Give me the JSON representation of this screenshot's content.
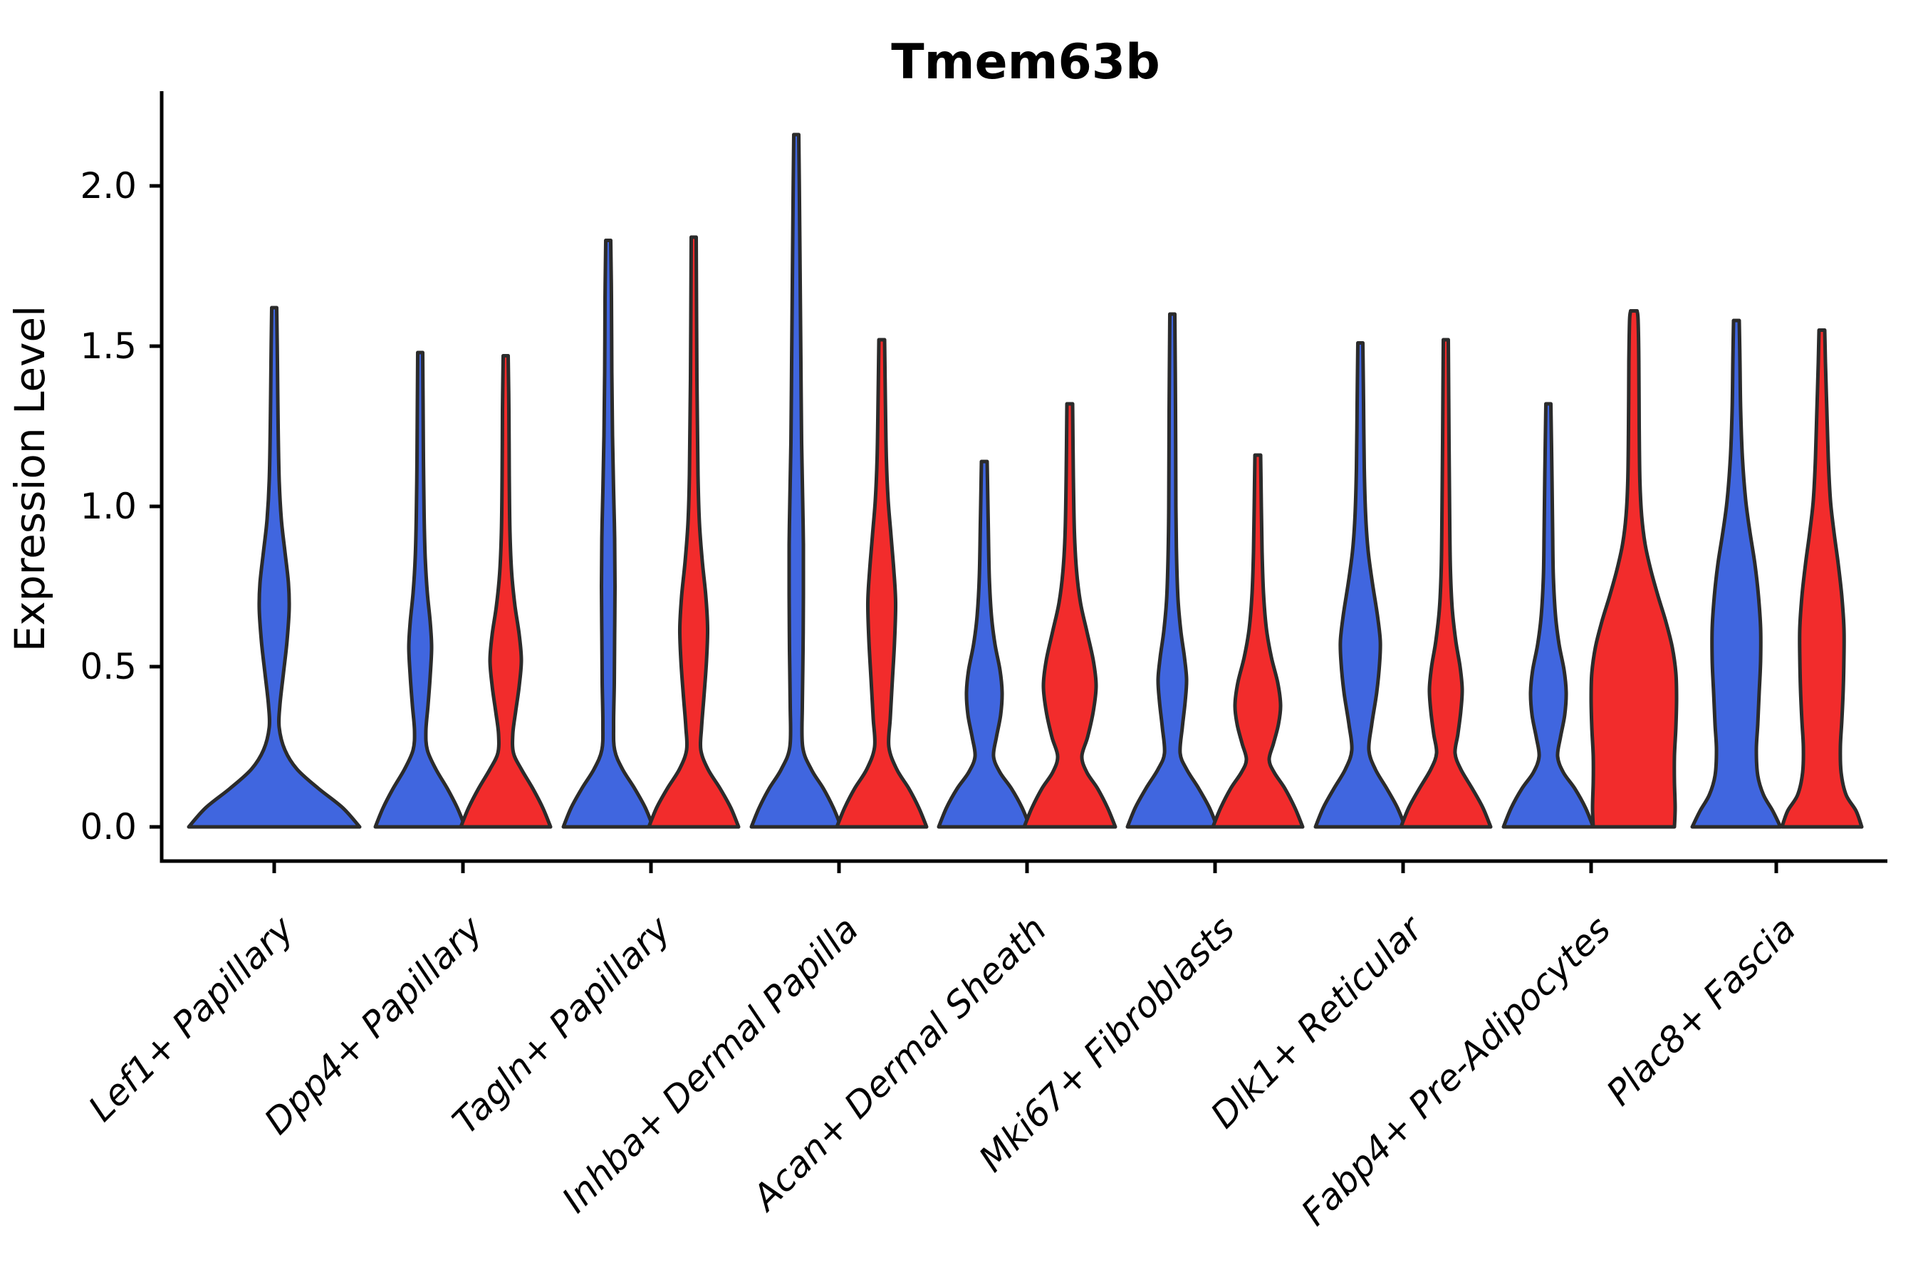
{
  "title": "Tmem63b",
  "y_axis": {
    "label": "Expression Level",
    "tick_labels": [
      "0.0",
      "0.5",
      "1.0",
      "1.5",
      "2.0"
    ],
    "tick_values": [
      0.0,
      0.5,
      1.0,
      1.5,
      2.0
    ]
  },
  "x_axis": {
    "categories": [
      "Lef1+ Papillary",
      "Dpp4+ Papillary",
      "Tagln+ Papillary",
      "Inhba+ Dermal Papilla",
      "Acan+ Dermal Sheath",
      "Mki67+ Fibroblasts",
      "Dlk1+ Reticular",
      "Fabp4+ Pre-Adipocytes",
      "Plac8+ Fascia"
    ],
    "category_centers": [
      385,
      650,
      914,
      1178,
      1442,
      1706,
      1970,
      2234,
      2494
    ]
  },
  "colors": {
    "blue_series": "#4066DF",
    "red_series": "#F22C2C",
    "violin_outline": "#2B2B2B",
    "axis": "#000000"
  },
  "chart_data": {
    "type": "violin",
    "title": "Tmem63b",
    "ylabel": "Expression Level",
    "ylim_display": [
      -0.11,
      2.29
    ],
    "yticks": [
      0.0,
      0.5,
      1.0,
      1.5,
      2.0
    ],
    "grid": false,
    "legend": "none",
    "categories": [
      "Lef1+ Papillary",
      "Dpp4+ Papillary",
      "Tagln+ Papillary",
      "Inhba+ Dermal Papilla",
      "Acan+ Dermal Sheath",
      "Mki67+ Fibroblasts",
      "Dlk1+ Reticular",
      "Fabp4+ Pre-Adipocytes",
      "Plac8+ Fascia"
    ],
    "series": [
      {
        "name": "series-blue",
        "color": "#4066DF",
        "max_expression_by_category": [
          1.62,
          1.48,
          1.83,
          2.16,
          1.14,
          1.6,
          1.51,
          1.32,
          1.58
        ]
      },
      {
        "name": "series-red",
        "color": "#F22C2C",
        "max_expression_by_category": [
          null,
          1.47,
          1.84,
          1.52,
          1.32,
          1.16,
          1.52,
          1.61,
          1.55
        ]
      }
    ],
    "violins": [
      {
        "category": "Lef1+ Papillary",
        "series": "blue",
        "cx": 385,
        "max": 1.62,
        "profile": [
          [
            0,
            120
          ],
          [
            0.06,
            96
          ],
          [
            0.12,
            62
          ],
          [
            0.18,
            32
          ],
          [
            0.24,
            15
          ],
          [
            0.31,
            7
          ],
          [
            0.38,
            8
          ],
          [
            0.48,
            13
          ],
          [
            0.58,
            18
          ],
          [
            0.68,
            21
          ],
          [
            0.76,
            20
          ],
          [
            0.86,
            15
          ],
          [
            0.96,
            10
          ],
          [
            1.08,
            7
          ],
          [
            1.25,
            5.5
          ],
          [
            1.45,
            4.5
          ],
          [
            1.62,
            3.5
          ]
        ]
      },
      {
        "category": "Dpp4+ Papillary",
        "series": "blue",
        "cx": 590,
        "max": 1.48,
        "profile": [
          [
            0,
            63
          ],
          [
            0.06,
            52
          ],
          [
            0.12,
            38
          ],
          [
            0.18,
            22
          ],
          [
            0.24,
            10
          ],
          [
            0.3,
            8
          ],
          [
            0.38,
            11
          ],
          [
            0.47,
            14
          ],
          [
            0.56,
            16
          ],
          [
            0.64,
            14
          ],
          [
            0.73,
            10
          ],
          [
            0.84,
            7
          ],
          [
            0.97,
            5.5
          ],
          [
            1.15,
            4.5
          ],
          [
            1.32,
            4
          ],
          [
            1.48,
            3.5
          ]
        ]
      },
      {
        "category": "Dpp4+ Papillary",
        "series": "red",
        "cx": 710,
        "max": 1.47,
        "profile": [
          [
            0,
            63
          ],
          [
            0.06,
            52
          ],
          [
            0.12,
            38
          ],
          [
            0.18,
            22
          ],
          [
            0.23,
            11
          ],
          [
            0.29,
            10
          ],
          [
            0.36,
            14
          ],
          [
            0.44,
            19
          ],
          [
            0.52,
            22
          ],
          [
            0.6,
            19
          ],
          [
            0.69,
            13
          ],
          [
            0.79,
            8.5
          ],
          [
            0.92,
            6
          ],
          [
            1.1,
            5
          ],
          [
            1.3,
            4.5
          ],
          [
            1.47,
            3.5
          ]
        ]
      },
      {
        "category": "Tagln+ Papillary",
        "series": "blue",
        "cx": 854,
        "max": 1.83,
        "profile": [
          [
            0,
            63
          ],
          [
            0.06,
            52
          ],
          [
            0.12,
            37
          ],
          [
            0.18,
            20
          ],
          [
            0.24,
            9
          ],
          [
            0.32,
            7.5
          ],
          [
            0.45,
            8.5
          ],
          [
            0.6,
            9
          ],
          [
            0.75,
            9.5
          ],
          [
            0.9,
            9
          ],
          [
            1.05,
            7.5
          ],
          [
            1.22,
            6
          ],
          [
            1.42,
            5
          ],
          [
            1.65,
            4.5
          ],
          [
            1.83,
            3.5
          ]
        ]
      },
      {
        "category": "Tagln+ Papillary",
        "series": "red",
        "cx": 974,
        "max": 1.84,
        "profile": [
          [
            0,
            63
          ],
          [
            0.06,
            52
          ],
          [
            0.12,
            37
          ],
          [
            0.18,
            20
          ],
          [
            0.24,
            10
          ],
          [
            0.31,
            11
          ],
          [
            0.41,
            14.5
          ],
          [
            0.52,
            18
          ],
          [
            0.62,
            19.5
          ],
          [
            0.72,
            17
          ],
          [
            0.83,
            12
          ],
          [
            0.95,
            8
          ],
          [
            1.1,
            6
          ],
          [
            1.4,
            4.5
          ],
          [
            1.84,
            3.5
          ]
        ]
      },
      {
        "category": "Inhba+ Dermal Papilla",
        "series": "blue",
        "cx": 1118,
        "max": 2.16,
        "profile": [
          [
            0,
            63
          ],
          [
            0.06,
            52
          ],
          [
            0.12,
            38
          ],
          [
            0.18,
            21
          ],
          [
            0.25,
            9
          ],
          [
            0.38,
            8.5
          ],
          [
            0.55,
            9.5
          ],
          [
            0.72,
            10
          ],
          [
            0.88,
            10
          ],
          [
            1.02,
            9
          ],
          [
            1.2,
            7.5
          ],
          [
            1.45,
            6.5
          ],
          [
            1.7,
            5.5
          ],
          [
            1.95,
            4.5
          ],
          [
            2.16,
            3.5
          ]
        ]
      },
      {
        "category": "Inhba+ Dermal Papilla",
        "series": "red",
        "cx": 1238,
        "max": 1.52,
        "profile": [
          [
            0,
            63
          ],
          [
            0.06,
            52
          ],
          [
            0.12,
            38
          ],
          [
            0.18,
            21
          ],
          [
            0.25,
            10
          ],
          [
            0.34,
            12
          ],
          [
            0.46,
            15
          ],
          [
            0.58,
            18
          ],
          [
            0.7,
            19.5
          ],
          [
            0.8,
            17
          ],
          [
            0.91,
            13
          ],
          [
            1.02,
            9
          ],
          [
            1.15,
            6.5
          ],
          [
            1.35,
            5
          ],
          [
            1.52,
            4
          ]
        ]
      },
      {
        "category": "Acan+ Dermal Sheath",
        "series": "blue",
        "cx": 1382,
        "max": 1.14,
        "profile": [
          [
            0,
            64
          ],
          [
            0.06,
            53
          ],
          [
            0.12,
            38
          ],
          [
            0.17,
            22
          ],
          [
            0.22,
            13
          ],
          [
            0.28,
            17
          ],
          [
            0.35,
            23
          ],
          [
            0.42,
            25
          ],
          [
            0.49,
            22
          ],
          [
            0.57,
            15
          ],
          [
            0.66,
            10
          ],
          [
            0.78,
            7
          ],
          [
            0.95,
            5.5
          ],
          [
            1.14,
            4
          ]
        ]
      },
      {
        "category": "Acan+ Dermal Sheath",
        "series": "red",
        "cx": 1502,
        "max": 1.32,
        "profile": [
          [
            0,
            64
          ],
          [
            0.06,
            53
          ],
          [
            0.12,
            39
          ],
          [
            0.17,
            24
          ],
          [
            0.22,
            17
          ],
          [
            0.28,
            25
          ],
          [
            0.36,
            33
          ],
          [
            0.44,
            37
          ],
          [
            0.52,
            33
          ],
          [
            0.61,
            24
          ],
          [
            0.7,
            15
          ],
          [
            0.8,
            9.5
          ],
          [
            0.92,
            6.5
          ],
          [
            1.1,
            5
          ],
          [
            1.32,
            4
          ]
        ]
      },
      {
        "category": "Mki67+ Fibroblasts",
        "series": "blue",
        "cx": 1646,
        "max": 1.6,
        "profile": [
          [
            0,
            63
          ],
          [
            0.06,
            52
          ],
          [
            0.12,
            37
          ],
          [
            0.18,
            20
          ],
          [
            0.23,
            11
          ],
          [
            0.31,
            14
          ],
          [
            0.39,
            18
          ],
          [
            0.46,
            20
          ],
          [
            0.53,
            17
          ],
          [
            0.61,
            12
          ],
          [
            0.71,
            8
          ],
          [
            0.84,
            6
          ],
          [
            1.0,
            5
          ],
          [
            1.3,
            4.5
          ],
          [
            1.6,
            3.5
          ]
        ]
      },
      {
        "category": "Mki67+ Fibroblasts",
        "series": "red",
        "cx": 1766,
        "max": 1.16,
        "profile": [
          [
            0,
            63
          ],
          [
            0.06,
            52
          ],
          [
            0.12,
            38
          ],
          [
            0.17,
            23
          ],
          [
            0.21,
            16
          ],
          [
            0.26,
            22
          ],
          [
            0.32,
            29
          ],
          [
            0.38,
            32
          ],
          [
            0.45,
            28
          ],
          [
            0.53,
            19
          ],
          [
            0.62,
            12
          ],
          [
            0.73,
            8
          ],
          [
            0.86,
            6
          ],
          [
            1.0,
            5
          ],
          [
            1.16,
            4
          ]
        ]
      },
      {
        "category": "Dlk1+ Reticular",
        "series": "blue",
        "cx": 1910,
        "max": 1.51,
        "profile": [
          [
            0,
            63
          ],
          [
            0.06,
            52
          ],
          [
            0.12,
            37
          ],
          [
            0.18,
            21
          ],
          [
            0.24,
            12
          ],
          [
            0.32,
            16
          ],
          [
            0.42,
            23
          ],
          [
            0.51,
            27
          ],
          [
            0.58,
            28
          ],
          [
            0.66,
            24
          ],
          [
            0.76,
            17
          ],
          [
            0.86,
            11
          ],
          [
            0.97,
            7.5
          ],
          [
            1.12,
            5.5
          ],
          [
            1.32,
            4.5
          ],
          [
            1.51,
            3.5
          ]
        ]
      },
      {
        "category": "Dlk1+ Reticular",
        "series": "red",
        "cx": 2030,
        "max": 1.52,
        "profile": [
          [
            0,
            63
          ],
          [
            0.06,
            52
          ],
          [
            0.12,
            37
          ],
          [
            0.18,
            21
          ],
          [
            0.23,
            13
          ],
          [
            0.29,
            17
          ],
          [
            0.36,
            21
          ],
          [
            0.43,
            23
          ],
          [
            0.5,
            20
          ],
          [
            0.58,
            14
          ],
          [
            0.68,
            9
          ],
          [
            0.8,
            6.5
          ],
          [
            0.95,
            5.5
          ],
          [
            1.2,
            4.5
          ],
          [
            1.52,
            3.5
          ]
        ]
      },
      {
        "category": "Fabp4+ Pre-Adipocytes",
        "series": "blue",
        "cx": 2174,
        "max": 1.32,
        "profile": [
          [
            0,
            63
          ],
          [
            0.06,
            52
          ],
          [
            0.12,
            37
          ],
          [
            0.17,
            21
          ],
          [
            0.22,
            13
          ],
          [
            0.28,
            17
          ],
          [
            0.35,
            23
          ],
          [
            0.42,
            25
          ],
          [
            0.49,
            22
          ],
          [
            0.57,
            15
          ],
          [
            0.66,
            10
          ],
          [
            0.78,
            7
          ],
          [
            0.92,
            6
          ],
          [
            1.1,
            5
          ],
          [
            1.32,
            3.5
          ]
        ]
      },
      {
        "category": "Fabp4+ Pre-Adipocytes",
        "series": "red",
        "cx": 2294,
        "max": 1.61,
        "profile": [
          [
            0,
            57
          ],
          [
            0.06,
            58
          ],
          [
            0.14,
            57
          ],
          [
            0.22,
            57
          ],
          [
            0.31,
            59
          ],
          [
            0.4,
            60
          ],
          [
            0.48,
            59
          ],
          [
            0.56,
            54
          ],
          [
            0.64,
            45
          ],
          [
            0.72,
            34
          ],
          [
            0.8,
            24
          ],
          [
            0.88,
            16
          ],
          [
            0.97,
            11
          ],
          [
            1.08,
            8.5
          ],
          [
            1.25,
            7.5
          ],
          [
            1.45,
            7
          ],
          [
            1.58,
            6
          ],
          [
            1.61,
            4.5
          ]
        ]
      },
      {
        "category": "Plac8+ Fascia",
        "series": "blue",
        "cx": 2438,
        "max": 1.58,
        "profile": [
          [
            0,
            62
          ],
          [
            0.05,
            51
          ],
          [
            0.1,
            38
          ],
          [
            0.16,
            30
          ],
          [
            0.24,
            28
          ],
          [
            0.32,
            30
          ],
          [
            0.42,
            32
          ],
          [
            0.52,
            34
          ],
          [
            0.62,
            34
          ],
          [
            0.72,
            31
          ],
          [
            0.82,
            26
          ],
          [
            0.92,
            19
          ],
          [
            1.02,
            13
          ],
          [
            1.15,
            8.5
          ],
          [
            1.3,
            6
          ],
          [
            1.45,
            5
          ],
          [
            1.58,
            4
          ]
        ]
      },
      {
        "category": "Plac8+ Fascia",
        "series": "red",
        "cx": 2558,
        "max": 1.55,
        "profile": [
          [
            0,
            56
          ],
          [
            0.05,
            48
          ],
          [
            0.1,
            34
          ],
          [
            0.17,
            27
          ],
          [
            0.25,
            26
          ],
          [
            0.33,
            28
          ],
          [
            0.43,
            30
          ],
          [
            0.53,
            31
          ],
          [
            0.62,
            31
          ],
          [
            0.72,
            28
          ],
          [
            0.82,
            23
          ],
          [
            0.92,
            17
          ],
          [
            1.02,
            12
          ],
          [
            1.15,
            9
          ],
          [
            1.3,
            7
          ],
          [
            1.45,
            5
          ],
          [
            1.55,
            4
          ]
        ]
      }
    ]
  }
}
